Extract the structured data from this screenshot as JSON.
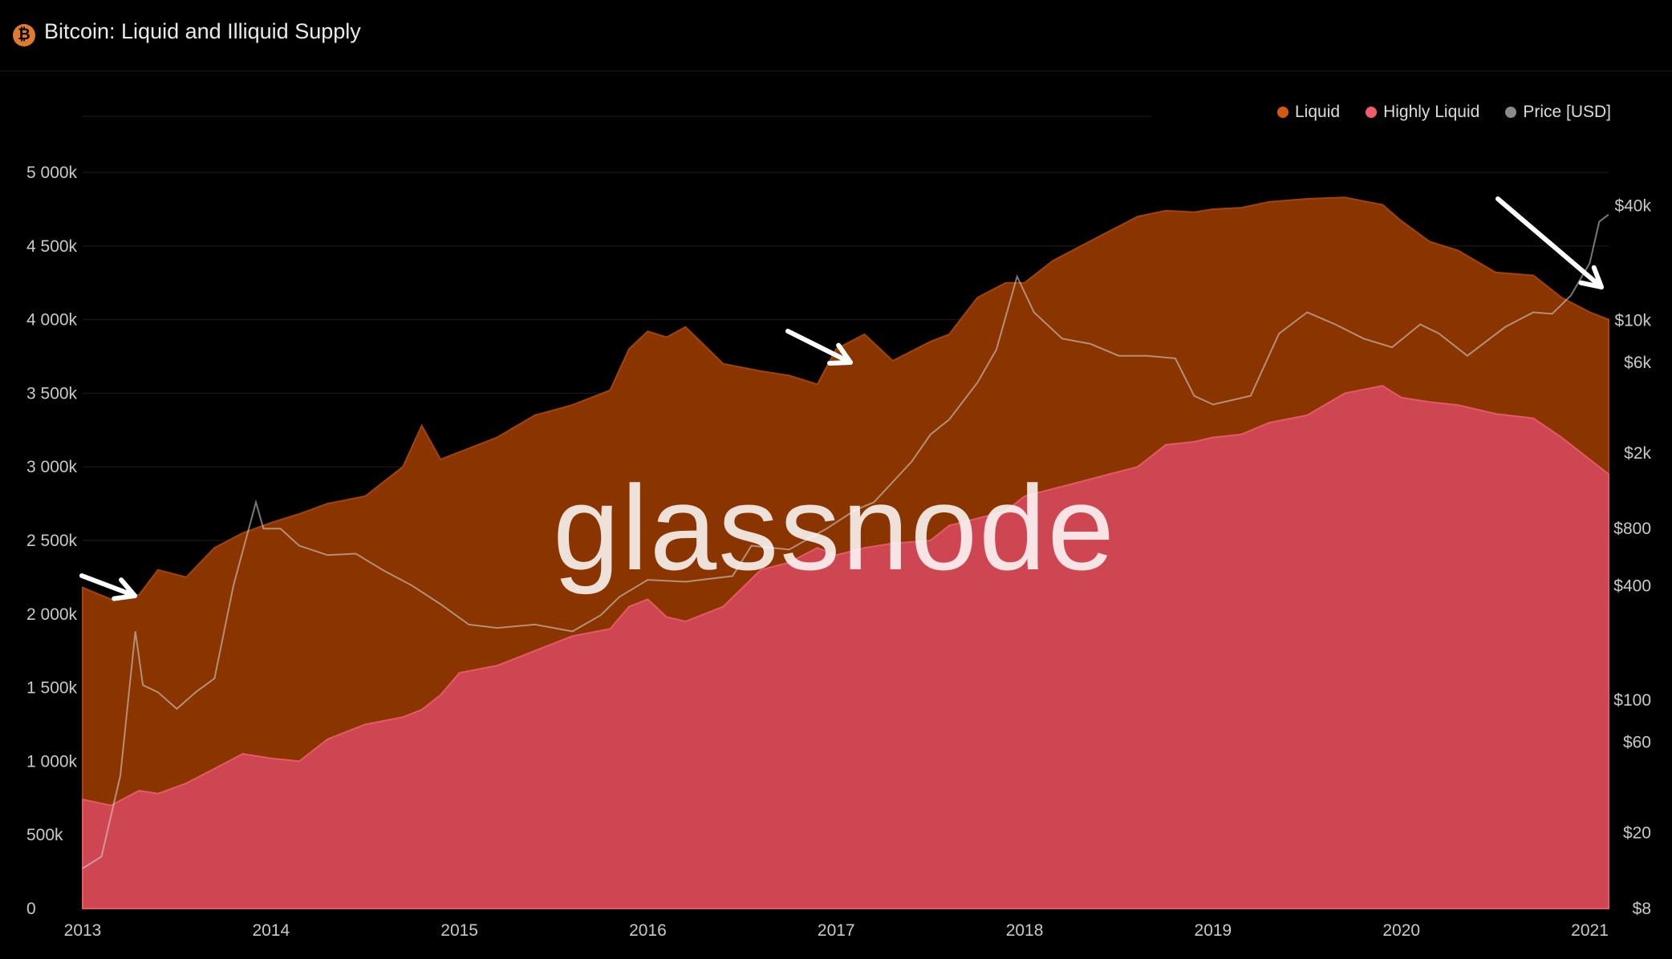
{
  "header": {
    "title": "Bitcoin: Liquid and Illiquid Supply",
    "icon": "bitcoin-icon",
    "icon_glyph": "₿"
  },
  "legend": [
    {
      "label": "Liquid",
      "color": "#d45a12"
    },
    {
      "label": "Highly Liquid",
      "color": "#ef5d6b"
    },
    {
      "label": "Price [USD]",
      "color": "#8a8a8a"
    }
  ],
  "watermark": "glassnode",
  "chart_data": {
    "type": "area",
    "title": "Bitcoin: Liquid and Illiquid Supply",
    "grid": "horizontal",
    "legend_position": "top-right",
    "x_ticks": [
      "2013",
      "2014",
      "2015",
      "2016",
      "2017",
      "2018",
      "2019",
      "2020",
      "2021"
    ],
    "x_range": [
      2013.0,
      2021.1
    ],
    "y_left": {
      "range": [
        0,
        5000000
      ],
      "ticks": [
        0,
        500000,
        1000000,
        1500000,
        2000000,
        2500000,
        3000000,
        3500000,
        4000000,
        4500000,
        5000000
      ],
      "tick_labels": [
        "0",
        "500k",
        "1 000k",
        "1 500k",
        "2 000k",
        "2 500k",
        "3 000k",
        "3 500k",
        "4 000k",
        "4 500k",
        "5 000k"
      ]
    },
    "y_right": {
      "scale": "log",
      "range": [
        8,
        60000
      ],
      "ticks": [
        8,
        20,
        60,
        100,
        400,
        800,
        2000,
        6000,
        10000,
        40000
      ],
      "tick_labels": [
        "$8",
        "$20",
        "$60",
        "$100",
        "$400",
        "$800",
        "$2k",
        "$6k",
        "$10k",
        "$40k"
      ]
    },
    "series": [
      {
        "name": "Liquid",
        "color": "#8a3500",
        "x": [
          2013.0,
          2013.15,
          2013.3,
          2013.4,
          2013.55,
          2013.7,
          2013.85,
          2014.0,
          2014.15,
          2014.3,
          2014.5,
          2014.7,
          2014.8,
          2014.9,
          2015.0,
          2015.2,
          2015.4,
          2015.6,
          2015.8,
          2015.9,
          2016.0,
          2016.1,
          2016.2,
          2016.4,
          2016.6,
          2016.75,
          2016.9,
          2017.0,
          2017.15,
          2017.3,
          2017.5,
          2017.6,
          2017.75,
          2017.9,
          2018.0,
          2018.15,
          2018.3,
          2018.45,
          2018.6,
          2018.75,
          2018.9,
          2019.0,
          2019.15,
          2019.3,
          2019.5,
          2019.7,
          2019.9,
          2020.0,
          2020.15,
          2020.3,
          2020.5,
          2020.7,
          2020.85,
          2021.0,
          2021.1
        ],
        "values": [
          2180000,
          2100000,
          2130000,
          2300000,
          2250000,
          2450000,
          2550000,
          2620000,
          2680000,
          2750000,
          2800000,
          3000000,
          3280000,
          3050000,
          3100000,
          3200000,
          3350000,
          3420000,
          3520000,
          3800000,
          3920000,
          3880000,
          3950000,
          3700000,
          3650000,
          3620000,
          3560000,
          3800000,
          3900000,
          3720000,
          3850000,
          3900000,
          4150000,
          4250000,
          4250000,
          4400000,
          4500000,
          4600000,
          4700000,
          4740000,
          4730000,
          4750000,
          4760000,
          4800000,
          4820000,
          4830000,
          4780000,
          4670000,
          4530000,
          4470000,
          4320000,
          4300000,
          4150000,
          4050000,
          4000000
        ]
      },
      {
        "name": "Highly Liquid",
        "color": "#cf4653",
        "x": [
          2013.0,
          2013.15,
          2013.3,
          2013.4,
          2013.55,
          2013.7,
          2013.85,
          2014.0,
          2014.15,
          2014.3,
          2014.5,
          2014.7,
          2014.8,
          2014.9,
          2015.0,
          2015.2,
          2015.4,
          2015.6,
          2015.8,
          2015.9,
          2016.0,
          2016.1,
          2016.2,
          2016.4,
          2016.6,
          2016.75,
          2016.9,
          2017.0,
          2017.15,
          2017.3,
          2017.5,
          2017.6,
          2017.75,
          2017.9,
          2018.0,
          2018.15,
          2018.3,
          2018.45,
          2018.6,
          2018.75,
          2018.9,
          2019.0,
          2019.15,
          2019.3,
          2019.5,
          2019.7,
          2019.9,
          2020.0,
          2020.15,
          2020.3,
          2020.5,
          2020.7,
          2020.85,
          2021.0,
          2021.1
        ],
        "values": [
          740000,
          700000,
          800000,
          780000,
          850000,
          950000,
          1050000,
          1020000,
          1000000,
          1150000,
          1250000,
          1300000,
          1350000,
          1450000,
          1600000,
          1650000,
          1750000,
          1850000,
          1900000,
          2050000,
          2100000,
          1980000,
          1950000,
          2050000,
          2300000,
          2350000,
          2450000,
          2400000,
          2450000,
          2480000,
          2500000,
          2600000,
          2650000,
          2700000,
          2800000,
          2850000,
          2900000,
          2950000,
          3000000,
          3150000,
          3170000,
          3200000,
          3220000,
          3300000,
          3350000,
          3500000,
          3550000,
          3470000,
          3440000,
          3420000,
          3360000,
          3330000,
          3200000,
          3050000,
          2950000
        ]
      },
      {
        "name": "Price [USD]",
        "color": "#8a8a8a",
        "x": [
          2013.0,
          2013.1,
          2013.2,
          2013.28,
          2013.32,
          2013.4,
          2013.5,
          2013.6,
          2013.7,
          2013.8,
          2013.92,
          2013.96,
          2014.05,
          2014.15,
          2014.3,
          2014.45,
          2014.6,
          2014.75,
          2014.9,
          2015.05,
          2015.2,
          2015.4,
          2015.6,
          2015.75,
          2015.85,
          2016.0,
          2016.2,
          2016.45,
          2016.55,
          2016.75,
          2016.95,
          2017.1,
          2017.2,
          2017.4,
          2017.5,
          2017.6,
          2017.75,
          2017.85,
          2017.96,
          2018.05,
          2018.2,
          2018.35,
          2018.5,
          2018.65,
          2018.8,
          2018.9,
          2019.0,
          2019.2,
          2019.35,
          2019.5,
          2019.65,
          2019.8,
          2019.95,
          2020.1,
          2020.2,
          2020.35,
          2020.55,
          2020.7,
          2020.8,
          2020.9,
          2021.0,
          2021.05,
          2021.1
        ],
        "values": [
          13,
          15,
          40,
          230,
          120,
          110,
          90,
          110,
          130,
          400,
          1100,
          800,
          800,
          650,
          580,
          590,
          480,
          400,
          320,
          250,
          240,
          250,
          230,
          280,
          350,
          430,
          420,
          450,
          650,
          620,
          800,
          1000,
          1100,
          1800,
          2500,
          3000,
          4700,
          7000,
          17000,
          11000,
          8000,
          7500,
          6500,
          6500,
          6300,
          4000,
          3600,
          4000,
          8500,
          11000,
          9500,
          8000,
          7200,
          9500,
          8500,
          6500,
          9200,
          11000,
          10800,
          13500,
          20000,
          33000,
          36000
        ]
      }
    ]
  }
}
